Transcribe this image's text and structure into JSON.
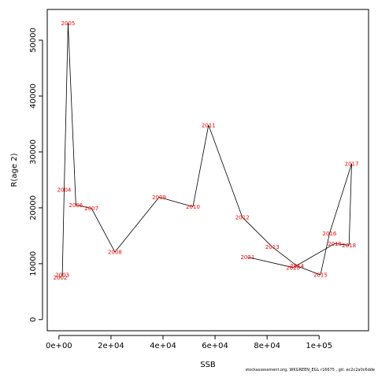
{
  "chart_data": {
    "type": "line",
    "xlabel": "SSB",
    "ylabel": "R(age 2)",
    "xlim": [
      -4500,
      119000
    ],
    "ylim": [
      -2000,
      55500
    ],
    "x_ticks": [
      0,
      20000,
      40000,
      60000,
      80000,
      100000
    ],
    "x_tick_labels": [
      "0e+00",
      "2e+04",
      "4e+04",
      "6e+04",
      "8e+04",
      "1e+05"
    ],
    "y_ticks": [
      0,
      10000,
      20000,
      30000,
      40000,
      50000
    ],
    "y_tick_labels": [
      "0",
      "10000",
      "20000",
      "30000",
      "40000",
      "50000"
    ],
    "grid": false,
    "line_color": "#000000",
    "label_color": "#ff0000",
    "points": [
      {
        "year": "2002",
        "x": 500,
        "y": 7500
      },
      {
        "year": "2003",
        "x": 1300,
        "y": 8000
      },
      {
        "year": "2004",
        "x": 2000,
        "y": 23200
      },
      {
        "year": "2005",
        "x": 3500,
        "y": 53000
      },
      {
        "year": "2006",
        "x": 6500,
        "y": 20500
      },
      {
        "year": "2007",
        "x": 12500,
        "y": 19900
      },
      {
        "year": "2008",
        "x": 21500,
        "y": 12100
      },
      {
        "year": "2009",
        "x": 38500,
        "y": 21900
      },
      {
        "year": "2010",
        "x": 51500,
        "y": 20200
      },
      {
        "year": "2011",
        "x": 57500,
        "y": 34800
      },
      {
        "year": "2012",
        "x": 70500,
        "y": 18300
      },
      {
        "year": "2013",
        "x": 82000,
        "y": 13000
      },
      {
        "year": "2014",
        "x": 91500,
        "y": 9600
      },
      {
        "year": "2015",
        "x": 100500,
        "y": 8000
      },
      {
        "year": "2016",
        "x": 104000,
        "y": 15400
      },
      {
        "year": "2017",
        "x": 112500,
        "y": 27900
      },
      {
        "year": "2018",
        "x": 111500,
        "y": 13300
      },
      {
        "year": "2019",
        "x": 106000,
        "y": 13600
      },
      {
        "year": "2020",
        "x": 90000,
        "y": 9300
      },
      {
        "year": "2021",
        "x": 72500,
        "y": 11200
      }
    ]
  },
  "footer": "stockassessment.org,  WKGREEN_EGL  r16675 , git: ec2c2a0c6dde"
}
